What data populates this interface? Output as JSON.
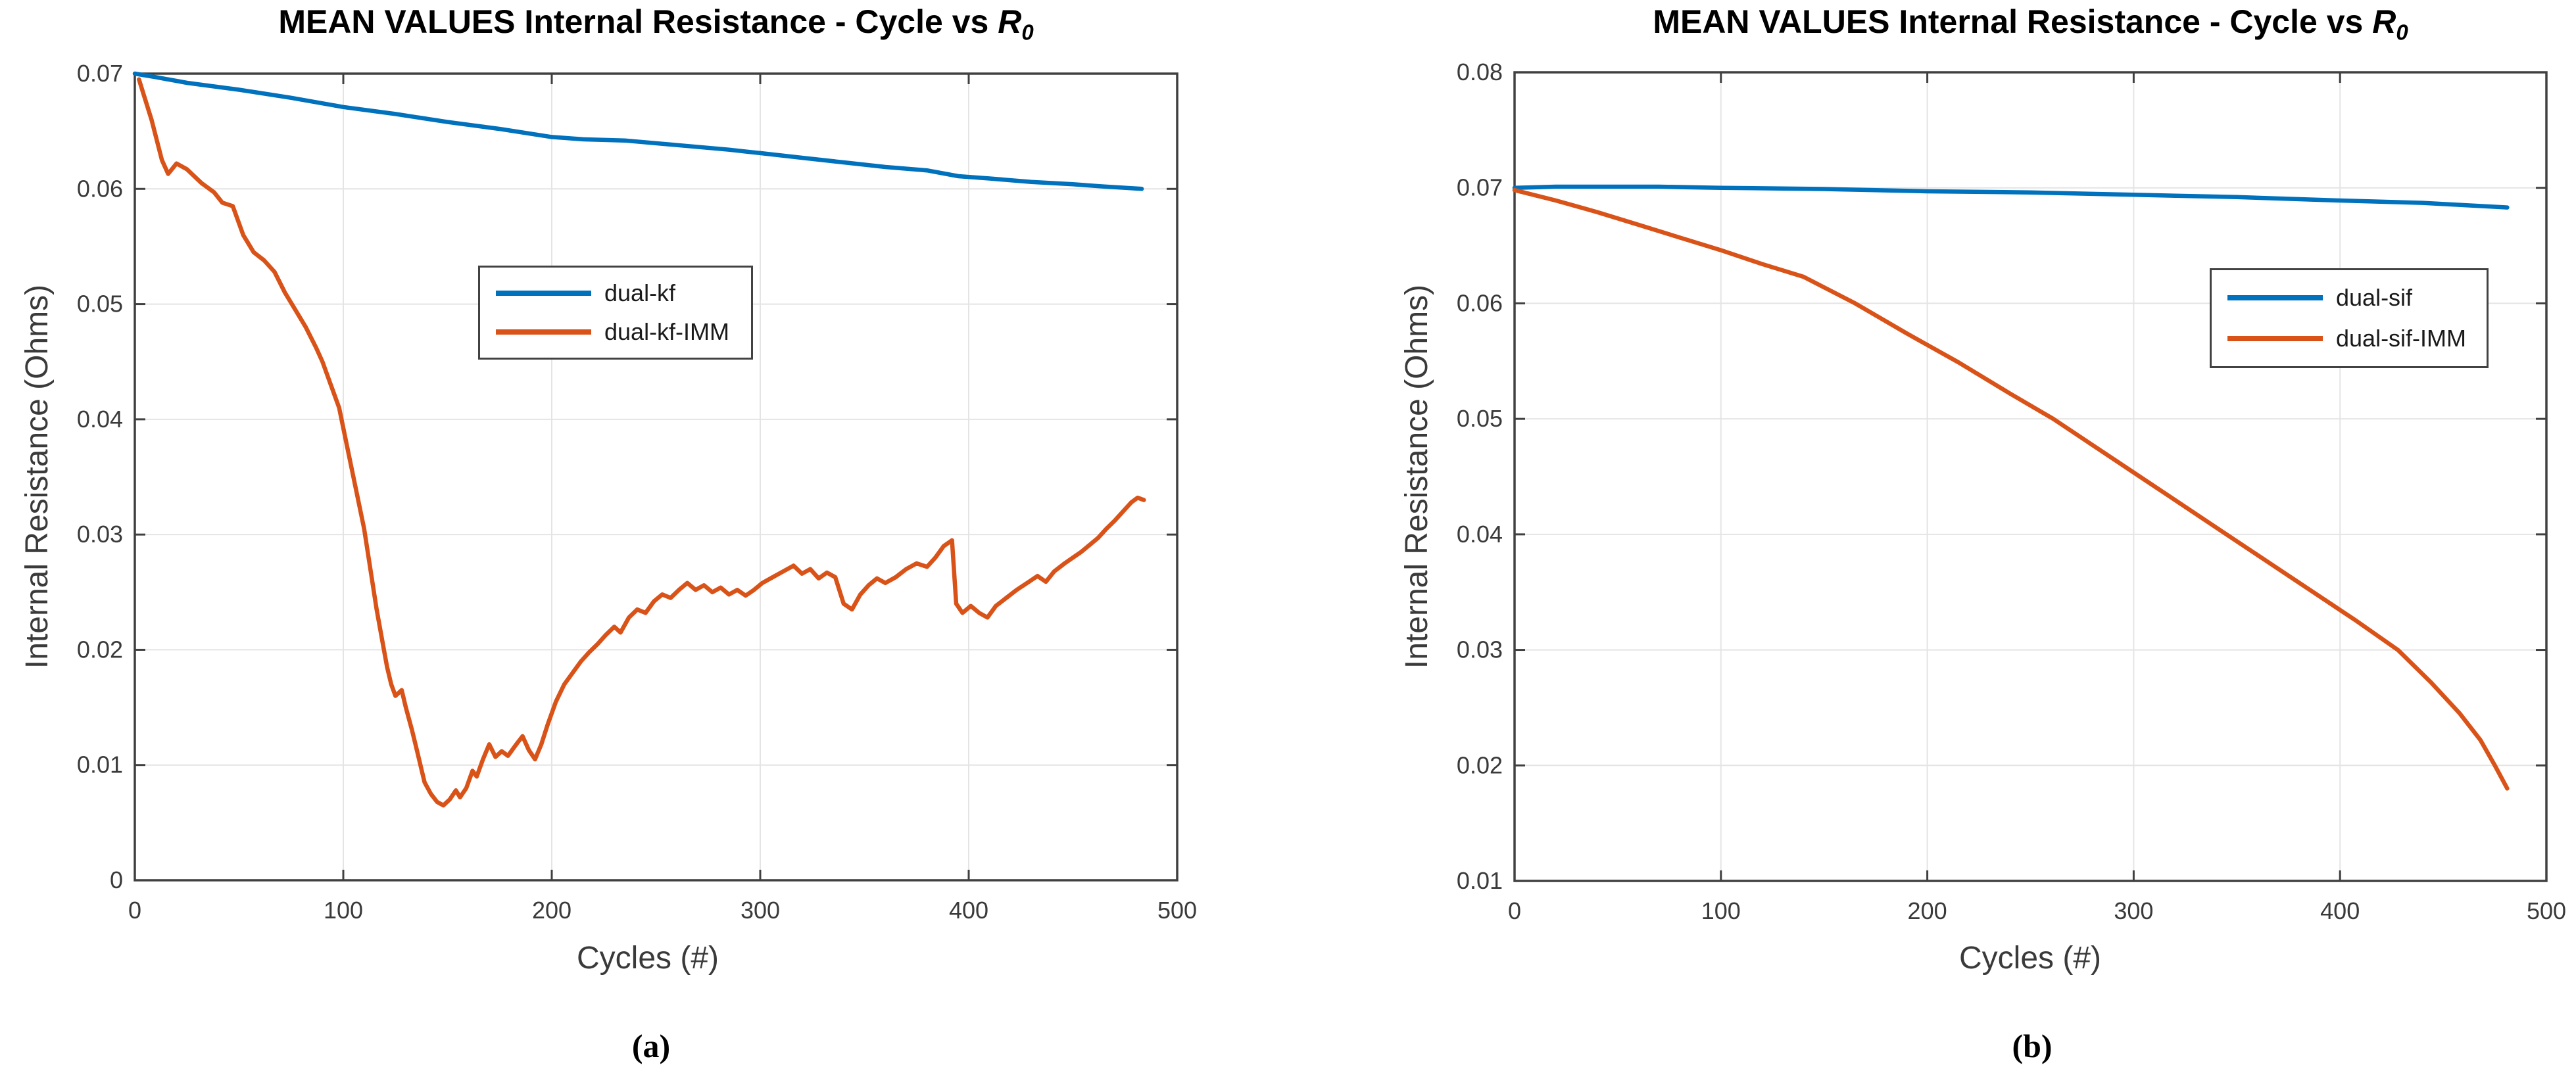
{
  "colors": {
    "blue": "#0072BD",
    "orange": "#D95319",
    "axis": "#404040",
    "grid": "#E4E4E4",
    "text": "#3a3a3a",
    "title": "#000000",
    "background": "#ffffff"
  },
  "chart_data": [
    {
      "id": "a",
      "type": "line",
      "title_prefix": "MEAN VALUES Internal Resistance - Cycle vs ",
      "title_math": "R",
      "title_sub": "0",
      "xlabel": "Cycles (#)",
      "ylabel": "Internal Resistance (Ohms)",
      "caption": "(a)",
      "xlim": [
        0,
        500
      ],
      "ylim": [
        0,
        0.07
      ],
      "x_ticks": [
        0,
        100,
        200,
        300,
        400,
        500
      ],
      "x_tick_labels": [
        "0",
        "100",
        "200",
        "300",
        "400",
        "500"
      ],
      "y_ticks": [
        0,
        0.01,
        0.02,
        0.03,
        0.04,
        0.05,
        0.06,
        0.07
      ],
      "y_tick_labels": [
        "0",
        "0.01",
        "0.02",
        "0.03",
        "0.04",
        "0.05",
        "0.06",
        "0.07"
      ],
      "grid": true,
      "legend_position": "upper center-left inside",
      "series": [
        {
          "name": "dual-kf",
          "color": "#0072BD",
          "x": [
            0,
            10,
            25,
            50,
            75,
            100,
            125,
            150,
            175,
            200,
            215,
            235,
            260,
            285,
            300,
            320,
            340,
            360,
            380,
            395,
            410,
            430,
            450,
            465,
            483
          ],
          "y": [
            0.07,
            0.0697,
            0.0692,
            0.0686,
            0.0679,
            0.0671,
            0.0665,
            0.0658,
            0.0652,
            0.0645,
            0.0643,
            0.0642,
            0.0638,
            0.0634,
            0.0631,
            0.0627,
            0.0623,
            0.0619,
            0.0616,
            0.0611,
            0.0609,
            0.0606,
            0.0604,
            0.0602,
            0.06
          ]
        },
        {
          "name": "dual-kf-IMM",
          "color": "#D95319",
          "x": [
            2,
            8,
            13,
            16,
            20,
            25,
            32,
            38,
            42,
            47,
            52,
            57,
            62,
            67,
            72,
            77,
            82,
            87,
            90,
            94,
            98,
            102,
            106,
            110,
            113,
            116,
            119,
            121,
            123,
            125,
            128,
            130,
            133,
            135,
            137,
            139,
            142,
            145,
            148,
            151,
            154,
            156,
            159,
            162,
            164,
            167,
            170,
            173,
            176,
            179,
            183,
            186,
            189,
            192,
            195,
            198,
            202,
            206,
            210,
            214,
            218,
            222,
            226,
            230,
            233,
            237,
            241,
            245,
            249,
            253,
            257,
            261,
            265,
            269,
            273,
            277,
            281,
            285,
            289,
            293,
            297,
            301,
            306,
            311,
            316,
            320,
            324,
            328,
            332,
            336,
            340,
            344,
            348,
            352,
            356,
            360,
            365,
            370,
            375,
            380,
            384,
            388,
            392,
            394,
            397,
            401,
            405,
            409,
            413,
            418,
            423,
            428,
            433,
            437,
            441,
            446,
            450,
            454,
            458,
            462,
            466,
            470,
            474,
            478,
            481,
            484
          ],
          "y": [
            0.0695,
            0.066,
            0.0625,
            0.0613,
            0.0622,
            0.0617,
            0.0605,
            0.0597,
            0.0588,
            0.0585,
            0.056,
            0.0545,
            0.0538,
            0.0528,
            0.051,
            0.0495,
            0.048,
            0.0462,
            0.045,
            0.043,
            0.041,
            0.0375,
            0.034,
            0.0305,
            0.027,
            0.0235,
            0.0205,
            0.0185,
            0.017,
            0.016,
            0.0165,
            0.015,
            0.013,
            0.0115,
            0.01,
            0.0085,
            0.0075,
            0.0068,
            0.0065,
            0.007,
            0.0078,
            0.0072,
            0.008,
            0.0095,
            0.009,
            0.0105,
            0.0118,
            0.0107,
            0.0112,
            0.0108,
            0.0118,
            0.0125,
            0.0113,
            0.0105,
            0.0118,
            0.0135,
            0.0155,
            0.017,
            0.018,
            0.019,
            0.0198,
            0.0205,
            0.0213,
            0.022,
            0.0215,
            0.0228,
            0.0235,
            0.0232,
            0.0242,
            0.0248,
            0.0245,
            0.0252,
            0.0258,
            0.0252,
            0.0256,
            0.025,
            0.0254,
            0.0248,
            0.0252,
            0.0247,
            0.0252,
            0.0258,
            0.0263,
            0.0268,
            0.0273,
            0.0266,
            0.027,
            0.0262,
            0.0267,
            0.0263,
            0.024,
            0.0235,
            0.0248,
            0.0256,
            0.0262,
            0.0258,
            0.0263,
            0.027,
            0.0275,
            0.0272,
            0.028,
            0.029,
            0.0295,
            0.024,
            0.0232,
            0.0238,
            0.0232,
            0.0228,
            0.0238,
            0.0245,
            0.0252,
            0.0258,
            0.0264,
            0.0259,
            0.0268,
            0.0275,
            0.028,
            0.0285,
            0.0291,
            0.0297,
            0.0305,
            0.0312,
            0.032,
            0.0328,
            0.0332,
            0.033
          ]
        }
      ]
    },
    {
      "id": "b",
      "type": "line",
      "title_prefix": "MEAN VALUES Internal Resistance - Cycle vs ",
      "title_math": "R",
      "title_sub": "0",
      "xlabel": "Cycles (#)",
      "ylabel": "Internal Resistance (Ohms)",
      "caption": "(b)",
      "xlim": [
        0,
        500
      ],
      "ylim": [
        0.01,
        0.08
      ],
      "x_ticks": [
        0,
        100,
        200,
        300,
        400,
        500
      ],
      "x_tick_labels": [
        "0",
        "100",
        "200",
        "300",
        "400",
        "500"
      ],
      "y_ticks": [
        0.01,
        0.02,
        0.03,
        0.04,
        0.05,
        0.06,
        0.07,
        0.08
      ],
      "y_tick_labels": [
        "0.01",
        "0.02",
        "0.03",
        "0.04",
        "0.05",
        "0.06",
        "0.07",
        "0.08"
      ],
      "grid": true,
      "legend_position": "middle right inside",
      "series": [
        {
          "name": "dual-sif",
          "color": "#0072BD",
          "x": [
            0,
            20,
            40,
            70,
            100,
            150,
            200,
            250,
            300,
            350,
            400,
            440,
            481
          ],
          "y": [
            0.07,
            0.0701,
            0.0701,
            0.0701,
            0.07,
            0.0699,
            0.0697,
            0.0696,
            0.0694,
            0.0692,
            0.0689,
            0.0687,
            0.0683
          ]
        },
        {
          "name": "dual-sif-IMM",
          "color": "#D95319",
          "x": [
            0,
            20,
            40,
            60,
            80,
            100,
            120,
            140,
            165,
            190,
            215,
            240,
            261,
            282,
            303,
            324,
            345,
            366,
            387,
            408,
            428,
            444,
            458,
            468,
            475,
            481
          ],
          "y": [
            0.0698,
            0.0689,
            0.0679,
            0.0668,
            0.0657,
            0.0646,
            0.0634,
            0.0623,
            0.06,
            0.0574,
            0.0549,
            0.0522,
            0.05,
            0.0475,
            0.045,
            0.0425,
            0.04,
            0.0375,
            0.035,
            0.0325,
            0.03,
            0.0272,
            0.0245,
            0.0222,
            0.02,
            0.018
          ]
        }
      ]
    }
  ]
}
